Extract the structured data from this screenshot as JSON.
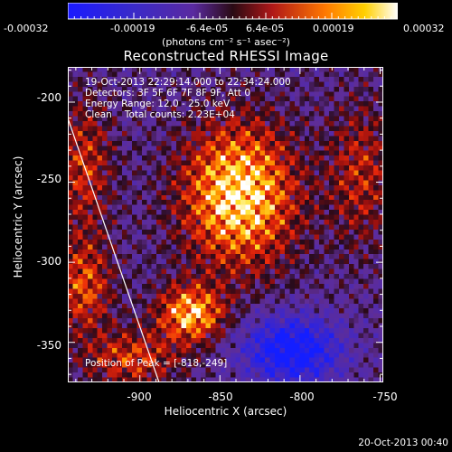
{
  "colorbar": {
    "tick_labels": [
      "-0.00032",
      "-0.00019",
      "-6.4e-05",
      "6.4e-05",
      "0.00019",
      "0.00032"
    ],
    "unit_label": "(photons cm⁻² s⁻¹ asec⁻²)",
    "range": [
      -0.00032,
      0.00032
    ]
  },
  "info": {
    "time_range": "19-Oct-2013 22:29:14.000 to 22:34:24.000",
    "detectors": "Detectors: 3F 5F 6F 7F 8F 9F, Att 0",
    "energy_range": "Energy Range: 12.0 - 25.0 keV",
    "algorithm": "Clean",
    "total_counts": "Total counts: 2.23E+04",
    "peak": "Position of Peak = [-818,-249]"
  },
  "footer": {
    "timestamp": "20-Oct-2013 00:40"
  },
  "chart_data": {
    "type": "heatmap",
    "title": "Reconstructed RHESSI Image",
    "xlabel": "Heliocentric X (arcsec)",
    "ylabel": "Heliocentric Y (arcsec)",
    "xlim": [
      -945,
      -748
    ],
    "ylim": [
      -375,
      -178
    ],
    "x_ticks": [
      -900,
      -850,
      -800,
      -750
    ],
    "y_ticks": [
      -200,
      -250,
      -300,
      -350
    ],
    "x_tick_labels": [
      "-900",
      "-850",
      "-800",
      "-750"
    ],
    "y_tick_labels": [
      "-200",
      "-250",
      "-300",
      "-350"
    ],
    "colormap": "blue-purple-red-yellow-white",
    "limb_line": [
      [
        -945,
        -210
      ],
      [
        -888,
        -375
      ]
    ],
    "peak_position": [
      -818,
      -249
    ],
    "sources": [
      {
        "x": -838,
        "y": -258,
        "sx": 24,
        "sy": 30,
        "amp": 1.0
      },
      {
        "x": -868,
        "y": -332,
        "sx": 14,
        "sy": 12,
        "amp": 0.85
      },
      {
        "x": -935,
        "y": -240,
        "sx": 12,
        "sy": 28,
        "amp": 0.45
      },
      {
        "x": -935,
        "y": -315,
        "sx": 12,
        "sy": 20,
        "amp": 0.55
      },
      {
        "x": -762,
        "y": -245,
        "sx": 14,
        "sy": 30,
        "amp": 0.4
      },
      {
        "x": -905,
        "y": -360,
        "sx": 20,
        "sy": 12,
        "amp": 0.5
      }
    ],
    "negative_region": {
      "x": -805,
      "y": -355,
      "sx": 20,
      "sy": 14,
      "amp": -0.9
    }
  }
}
